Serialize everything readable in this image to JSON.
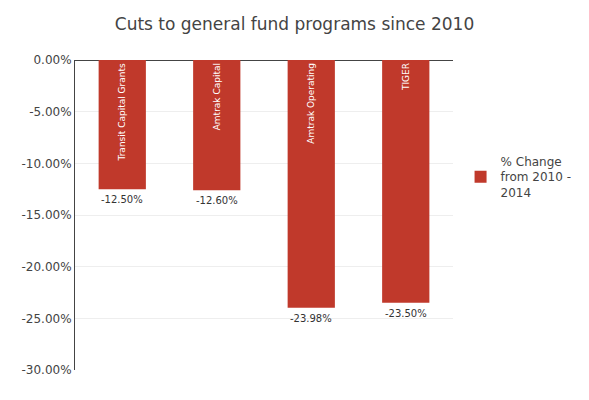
{
  "chart_data": {
    "type": "bar",
    "title": "Cuts to general fund programs since 2010",
    "categories": [
      "Transit Capital Grants",
      "Amtrak Capital",
      "Amtrak Operating",
      "TIGER"
    ],
    "series": [
      {
        "name": "% Change\nfrom 2010 -\n2014",
        "color": "#C0392B",
        "values": [
          -12.5,
          -12.6,
          -23.98,
          -23.5
        ],
        "value_labels": [
          "-12.50%",
          "-12.60%",
          "-23.98%",
          "-23.50%"
        ]
      }
    ],
    "ylim": [
      -30,
      0
    ],
    "yticks": [
      {
        "value": 0,
        "label": "0.00%"
      },
      {
        "value": -5,
        "label": "-5.00%"
      },
      {
        "value": -10,
        "label": "-10.00%"
      },
      {
        "value": -15,
        "label": "-15.00%"
      },
      {
        "value": -20,
        "label": "-20.00%"
      },
      {
        "value": -25,
        "label": "-25.00%"
      },
      {
        "value": -30,
        "label": "-30.00%"
      }
    ],
    "grid": true,
    "legend": "right",
    "data_labels": true,
    "tick_labels": "y"
  }
}
